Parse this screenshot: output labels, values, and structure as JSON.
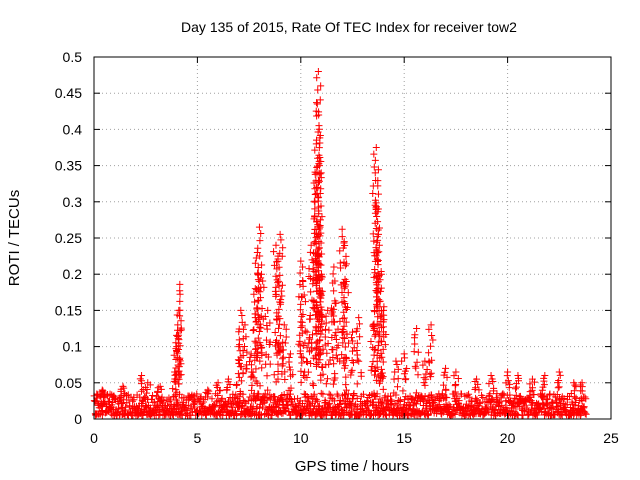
{
  "chart_data": {
    "type": "scatter",
    "title": "Day 135 of 2015, Rate Of TEC Index for receiver tow2",
    "xlabel": "GPS time / hours",
    "ylabel": "ROTI / TECUs",
    "xlim": [
      0,
      25
    ],
    "ylim": [
      0,
      0.5
    ],
    "xticks": [
      0,
      5,
      10,
      15,
      20,
      25
    ],
    "yticks": [
      0,
      0.05,
      0.1,
      0.15,
      0.2,
      0.25,
      0.3,
      0.35,
      0.4,
      0.45,
      0.5
    ],
    "xtick_labels": [
      "0",
      "5",
      "10",
      "15",
      "20",
      "25"
    ],
    "ytick_labels": [
      "0",
      "0.05",
      "0.1",
      "0.15",
      "0.2",
      "0.25",
      "0.3",
      "0.35",
      "0.4",
      "0.45",
      "0.5"
    ],
    "grid": true,
    "marker": "+",
    "color": "#ff0000",
    "series": [
      {
        "name": "ROTI",
        "baseline_range_hours": [
          0,
          23.8
        ],
        "baseline_typical": [
          0.005,
          0.035
        ],
        "spikes": [
          {
            "x": 0.1,
            "y": 0.025
          },
          {
            "x": 0.4,
            "y": 0.04
          },
          {
            "x": 0.9,
            "y": 0.03
          },
          {
            "x": 1.4,
            "y": 0.045
          },
          {
            "x": 2.3,
            "y": 0.06
          },
          {
            "x": 2.6,
            "y": 0.05
          },
          {
            "x": 3.2,
            "y": 0.045
          },
          {
            "x": 3.9,
            "y": 0.065
          },
          {
            "x": 4.0,
            "y": 0.1
          },
          {
            "x": 4.05,
            "y": 0.13
          },
          {
            "x": 4.1,
            "y": 0.15
          },
          {
            "x": 4.15,
            "y": 0.186
          },
          {
            "x": 5.5,
            "y": 0.04
          },
          {
            "x": 6.0,
            "y": 0.05
          },
          {
            "x": 6.5,
            "y": 0.055
          },
          {
            "x": 7.0,
            "y": 0.1
          },
          {
            "x": 7.1,
            "y": 0.15
          },
          {
            "x": 7.3,
            "y": 0.13
          },
          {
            "x": 7.6,
            "y": 0.09
          },
          {
            "x": 7.8,
            "y": 0.18
          },
          {
            "x": 7.9,
            "y": 0.23
          },
          {
            "x": 8.0,
            "y": 0.265
          },
          {
            "x": 8.1,
            "y": 0.2
          },
          {
            "x": 8.4,
            "y": 0.15
          },
          {
            "x": 8.8,
            "y": 0.24
          },
          {
            "x": 8.9,
            "y": 0.225
          },
          {
            "x": 9.0,
            "y": 0.255
          },
          {
            "x": 9.2,
            "y": 0.13
          },
          {
            "x": 9.5,
            "y": 0.09
          },
          {
            "x": 10.0,
            "y": 0.218
          },
          {
            "x": 10.1,
            "y": 0.19
          },
          {
            "x": 10.3,
            "y": 0.12
          },
          {
            "x": 10.5,
            "y": 0.24
          },
          {
            "x": 10.7,
            "y": 0.31
          },
          {
            "x": 10.75,
            "y": 0.38
          },
          {
            "x": 10.8,
            "y": 0.435
          },
          {
            "x": 10.85,
            "y": 0.48
          },
          {
            "x": 10.9,
            "y": 0.35
          },
          {
            "x": 10.95,
            "y": 0.275
          },
          {
            "x": 11.0,
            "y": 0.2
          },
          {
            "x": 11.3,
            "y": 0.15
          },
          {
            "x": 11.6,
            "y": 0.21
          },
          {
            "x": 11.7,
            "y": 0.16
          },
          {
            "x": 12.0,
            "y": 0.262
          },
          {
            "x": 12.1,
            "y": 0.245
          },
          {
            "x": 12.2,
            "y": 0.19
          },
          {
            "x": 12.5,
            "y": 0.12
          },
          {
            "x": 12.8,
            "y": 0.14
          },
          {
            "x": 13.5,
            "y": 0.13
          },
          {
            "x": 13.6,
            "y": 0.34
          },
          {
            "x": 13.65,
            "y": 0.375
          },
          {
            "x": 13.75,
            "y": 0.29
          },
          {
            "x": 13.8,
            "y": 0.24
          },
          {
            "x": 13.9,
            "y": 0.2
          },
          {
            "x": 14.0,
            "y": 0.15
          },
          {
            "x": 14.6,
            "y": 0.08
          },
          {
            "x": 15.0,
            "y": 0.09
          },
          {
            "x": 15.6,
            "y": 0.125
          },
          {
            "x": 16.0,
            "y": 0.08
          },
          {
            "x": 16.3,
            "y": 0.13
          },
          {
            "x": 17.0,
            "y": 0.07
          },
          {
            "x": 17.5,
            "y": 0.065
          },
          {
            "x": 18.5,
            "y": 0.055
          },
          {
            "x": 19.2,
            "y": 0.06
          },
          {
            "x": 20.0,
            "y": 0.065
          },
          {
            "x": 20.5,
            "y": 0.06
          },
          {
            "x": 21.2,
            "y": 0.055
          },
          {
            "x": 21.8,
            "y": 0.06
          },
          {
            "x": 22.5,
            "y": 0.065
          },
          {
            "x": 23.2,
            "y": 0.05
          },
          {
            "x": 23.6,
            "y": 0.05
          }
        ]
      }
    ]
  }
}
